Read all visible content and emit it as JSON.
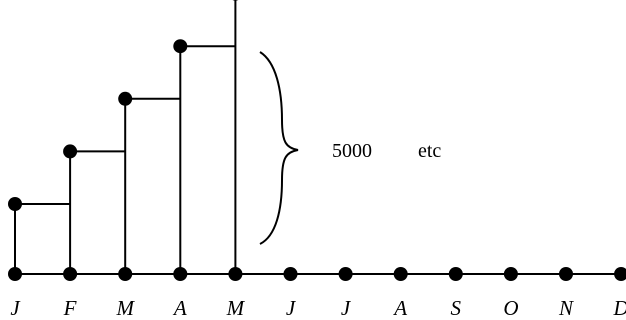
{
  "months": [
    "J",
    "F",
    "M",
    "A",
    "M",
    "J",
    "J",
    "A",
    "S",
    "O",
    "N",
    "D"
  ],
  "steps": [
    {
      "month_index": 0,
      "level": 1
    },
    {
      "month_index": 1,
      "level": 2
    },
    {
      "month_index": 2,
      "level": 3
    },
    {
      "month_index": 3,
      "level": 4
    },
    {
      "month_index": 4,
      "level": 5
    }
  ],
  "annotation": {
    "amount": "5000",
    "suffix": "etc"
  }
}
